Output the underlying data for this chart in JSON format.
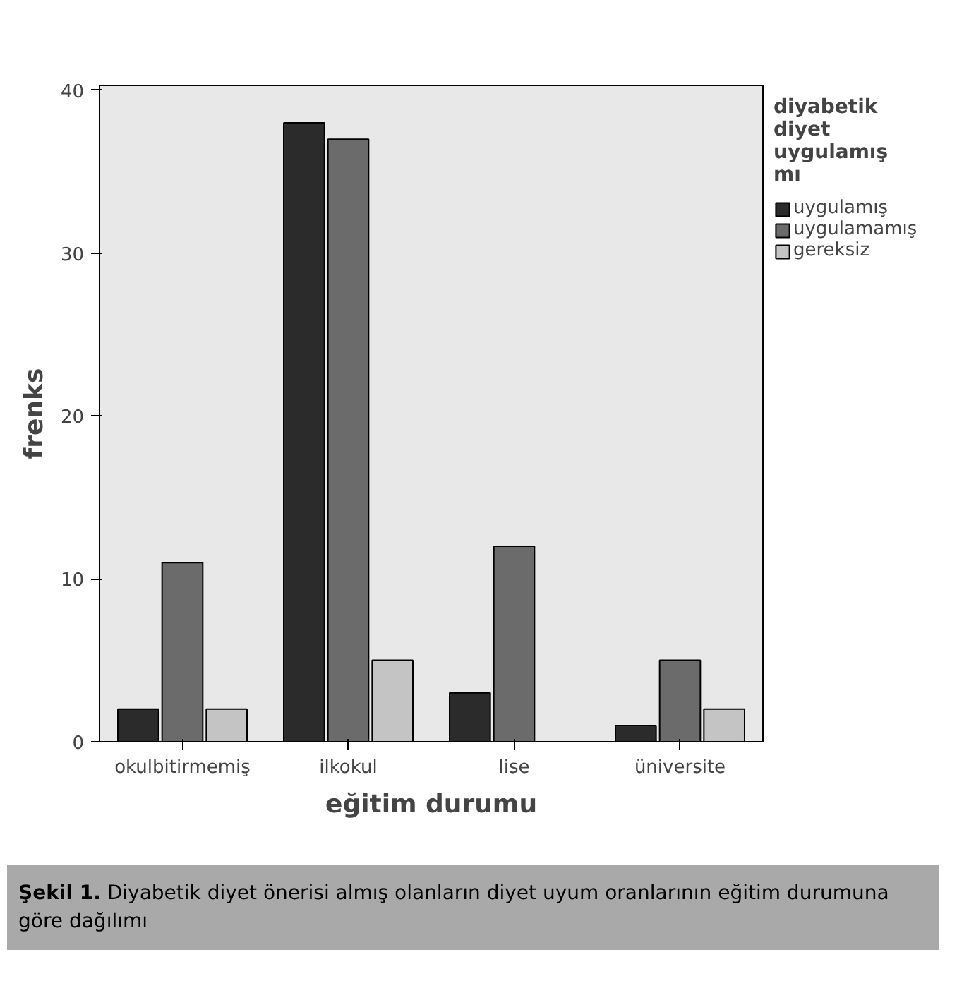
{
  "chart_data": {
    "type": "bar",
    "xlabel": "eğitim durumu",
    "ylabel": "frenks",
    "legend_title": "diyabetik diyet uygulamış mı",
    "categories": [
      "okulbitirmemiş",
      "ilkokul",
      "lise",
      "üniversite"
    ],
    "series": [
      {
        "name": "uygulamış",
        "color": "#2b2b2b",
        "values": [
          2,
          38,
          3,
          1
        ]
      },
      {
        "name": "uygulamamış",
        "color": "#6b6b6b",
        "values": [
          11,
          37,
          12,
          5
        ]
      },
      {
        "name": "gereksiz",
        "color": "#c4c4c4",
        "values": [
          2,
          5,
          null,
          2
        ]
      }
    ],
    "ylim": [
      0,
      40.3
    ],
    "yticks": [
      0,
      10,
      20,
      30,
      40
    ],
    "grid": false,
    "legend": "right",
    "annotations": [
      "Şekil 1. Diyabetik diyet önerisi almış olanların diyet uyum oranlarının eğitim durumuna göre dağılımı"
    ]
  }
}
